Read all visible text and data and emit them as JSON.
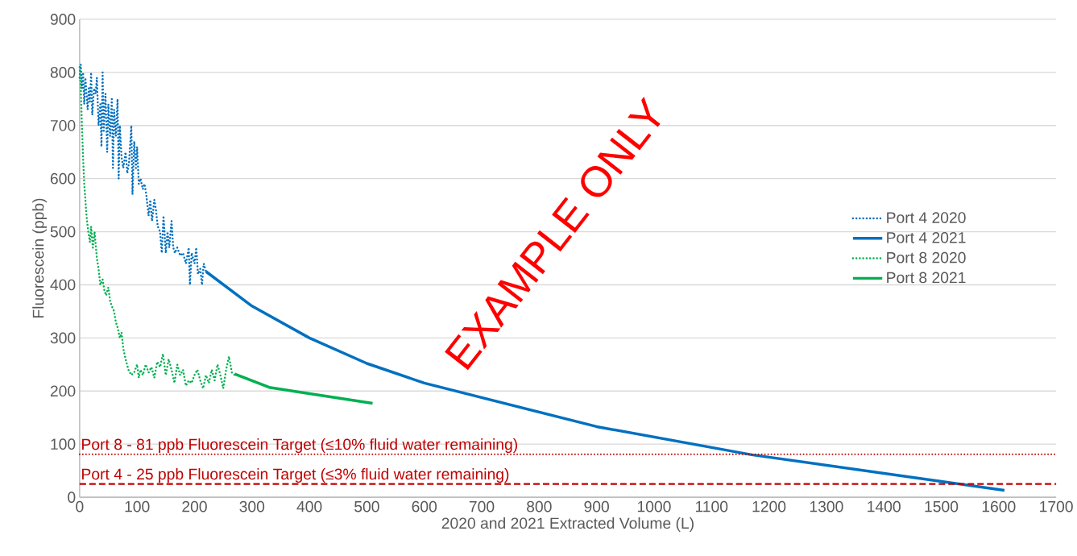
{
  "chart_data": {
    "type": "line",
    "xlabel": "2020 and 2021 Extracted Volume (L)",
    "ylabel": "Fluorescein (ppb)",
    "xlim": [
      0,
      1700
    ],
    "xticks": [
      0,
      100,
      200,
      300,
      400,
      500,
      600,
      700,
      800,
      900,
      1000,
      1100,
      1200,
      1300,
      1400,
      1500,
      1600,
      1700
    ],
    "ylim": [
      0,
      900
    ],
    "yticks": [
      0,
      100,
      200,
      300,
      400,
      500,
      600,
      700,
      800,
      900
    ],
    "grid": "y",
    "legend": "right",
    "marker": "none",
    "series": [
      {
        "name": "Port 4 2020",
        "color": "#0070c0",
        "line_style": "dotted",
        "x": [
          0,
          2,
          4,
          6,
          8,
          10,
          12,
          14,
          16,
          18,
          20,
          22,
          25,
          28,
          30,
          33,
          36,
          38,
          40,
          42,
          45,
          48,
          50,
          53,
          56,
          58,
          60,
          63,
          66,
          68,
          70,
          73,
          76,
          80,
          83,
          86,
          90,
          92,
          95,
          98,
          100,
          103,
          106,
          110,
          113,
          116,
          120,
          123,
          126,
          130,
          133,
          136,
          140,
          143,
          146,
          150,
          153,
          156,
          160,
          163,
          166,
          170,
          175,
          180,
          185,
          190,
          192,
          195,
          200,
          203,
          206,
          210,
          213,
          216,
          220
        ],
        "values": [
          790,
          815,
          770,
          800,
          740,
          790,
          760,
          730,
          770,
          745,
          800,
          720,
          770,
          760,
          790,
          700,
          740,
          660,
          800,
          690,
          760,
          650,
          740,
          680,
          750,
          620,
          730,
          680,
          750,
          600,
          700,
          640,
          620,
          650,
          610,
          630,
          700,
          570,
          670,
          620,
          660,
          590,
          600,
          580,
          590,
          570,
          530,
          560,
          520,
          560,
          540,
          510,
          500,
          460,
          530,
          460,
          500,
          470,
          520,
          470,
          460,
          470,
          455,
          460,
          440,
          470,
          400,
          460,
          440,
          470,
          420,
          430,
          400,
          440,
          425
        ]
      },
      {
        "name": "Port 4 2021",
        "color": "#0070c0",
        "line_style": "solid",
        "x": [
          220,
          300,
          400,
          500,
          600,
          900,
          1170,
          1610
        ],
        "values": [
          425,
          360,
          300,
          252,
          215,
          133,
          80,
          13
        ]
      },
      {
        "name": "Port 8 2020",
        "color": "#00b050",
        "line_style": "dotted",
        "x": [
          0,
          2,
          4,
          6,
          8,
          10,
          12,
          15,
          18,
          20,
          23,
          26,
          30,
          33,
          36,
          40,
          43,
          46,
          50,
          53,
          56,
          60,
          63,
          66,
          70,
          73,
          76,
          80,
          85,
          90,
          95,
          100,
          103,
          106,
          110,
          115,
          120,
          125,
          130,
          135,
          140,
          145,
          150,
          155,
          160,
          165,
          170,
          175,
          180,
          185,
          190,
          195,
          200,
          205,
          210,
          215,
          220,
          225,
          230,
          235,
          240,
          245,
          250,
          255,
          260,
          265,
          270
        ],
        "values": [
          810,
          770,
          700,
          640,
          590,
          560,
          530,
          500,
          480,
          510,
          470,
          500,
          450,
          430,
          400,
          410,
          390,
          380,
          395,
          370,
          360,
          350,
          330,
          320,
          300,
          310,
          280,
          260,
          240,
          230,
          235,
          250,
          225,
          240,
          230,
          250,
          235,
          245,
          225,
          255,
          245,
          270,
          230,
          260,
          240,
          215,
          250,
          230,
          240,
          210,
          220,
          215,
          230,
          240,
          220,
          205,
          230,
          215,
          240,
          220,
          250,
          230,
          205,
          240,
          265,
          235,
          230
        ]
      },
      {
        "name": "Port 8 2021",
        "color": "#00b050",
        "line_style": "solid",
        "x": [
          270,
          330,
          400,
          510
        ],
        "values": [
          232,
          207,
          195,
          177
        ]
      }
    ],
    "ref_lines": [
      {
        "axis": "y",
        "value": 81,
        "label": "Port 8 - 81 ppb Fluorescein Target (≤10% fluid water remaining)",
        "color": "#c00000",
        "line_style": "dotted"
      },
      {
        "axis": "y",
        "value": 25,
        "label": "Port 4 - 25 ppb Fluorescein Target (≤3% fluid water remaining)",
        "color": "#c00000",
        "line_style": "dashed"
      }
    ],
    "annotations": [
      "EXAMPLE ONLY"
    ]
  }
}
